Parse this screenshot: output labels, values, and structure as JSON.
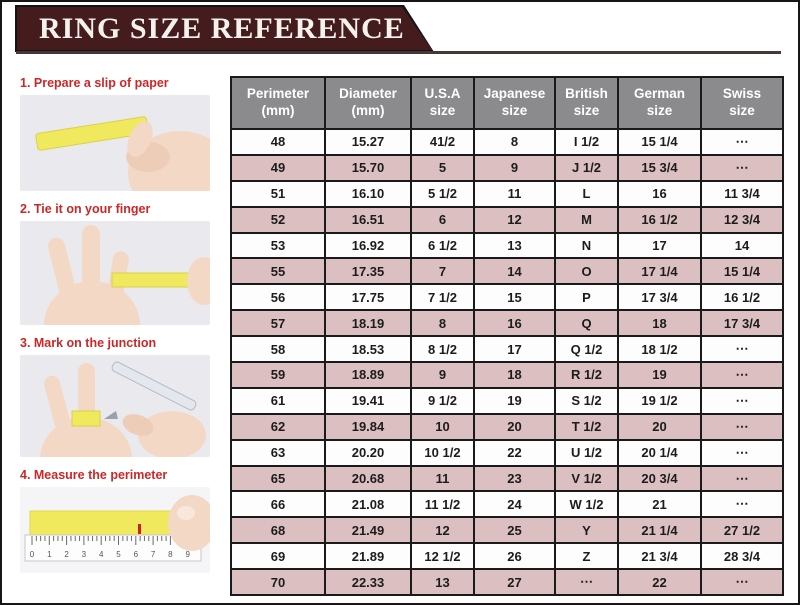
{
  "banner": {
    "title": "RING SIZE REFERENCE"
  },
  "steps": [
    {
      "label": "1. Prepare a slip of paper"
    },
    {
      "label": "2. Tie it on your finger"
    },
    {
      "label": "3. Mark on the junction"
    },
    {
      "label": "4. Measure the perimeter"
    }
  ],
  "ruler": {
    "numbers": [
      "0",
      "1",
      "2",
      "3",
      "4",
      "5",
      "6",
      "7",
      "8",
      "9"
    ]
  },
  "colors": {
    "banner_maroon": "#451c1e",
    "header_gray": "#8b8b8d",
    "row_pink": "#dcc0c1",
    "step_label_red": "#cc2727",
    "paper_yellow": "#f0e95e",
    "table_border": "#1a1a1a"
  },
  "chart_data": {
    "type": "table",
    "title": "RING SIZE REFERENCE",
    "columns": [
      "Perimeter\n(mm)",
      "Diameter\n(mm)",
      "U.S.A\nsize",
      "Japanese\nsize",
      "British\nsize",
      "German\nsize",
      "Swiss\nsize"
    ],
    "rows": [
      [
        "48",
        "15.27",
        "41/2",
        "8",
        "I 1/2",
        "15 1/4",
        "⋯"
      ],
      [
        "49",
        "15.70",
        "5",
        "9",
        "J 1/2",
        "15 3/4",
        "⋯"
      ],
      [
        "51",
        "16.10",
        "5 1/2",
        "11",
        "L",
        "16",
        "11 3/4"
      ],
      [
        "52",
        "16.51",
        "6",
        "12",
        "M",
        "16 1/2",
        "12 3/4"
      ],
      [
        "53",
        "16.92",
        "6 1/2",
        "13",
        "N",
        "17",
        "14"
      ],
      [
        "55",
        "17.35",
        "7",
        "14",
        "O",
        "17 1/4",
        "15 1/4"
      ],
      [
        "56",
        "17.75",
        "7 1/2",
        "15",
        "P",
        "17 3/4",
        "16 1/2"
      ],
      [
        "57",
        "18.19",
        "8",
        "16",
        "Q",
        "18",
        "17 3/4"
      ],
      [
        "58",
        "18.53",
        "8 1/2",
        "17",
        "Q 1/2",
        "18 1/2",
        "⋯"
      ],
      [
        "59",
        "18.89",
        "9",
        "18",
        "R 1/2",
        "19",
        "⋯"
      ],
      [
        "61",
        "19.41",
        "9 1/2",
        "19",
        "S 1/2",
        "19 1/2",
        "⋯"
      ],
      [
        "62",
        "19.84",
        "10",
        "20",
        "T 1/2",
        "20",
        "⋯"
      ],
      [
        "63",
        "20.20",
        "10 1/2",
        "22",
        "U 1/2",
        "20 1/4",
        "⋯"
      ],
      [
        "65",
        "20.68",
        "11",
        "23",
        "V 1/2",
        "20 3/4",
        "⋯"
      ],
      [
        "66",
        "21.08",
        "11 1/2",
        "24",
        "W 1/2",
        "21",
        "⋯"
      ],
      [
        "68",
        "21.49",
        "12",
        "25",
        "Y",
        "21 1/4",
        "27 1/2"
      ],
      [
        "69",
        "21.89",
        "12 1/2",
        "26",
        "Z",
        "21 3/4",
        "28 3/4"
      ],
      [
        "70",
        "22.33",
        "13",
        "27",
        "⋯",
        "22",
        "⋯"
      ]
    ],
    "layout": {
      "row_striping": "white/pink alternating starting white",
      "grid": true
    }
  }
}
